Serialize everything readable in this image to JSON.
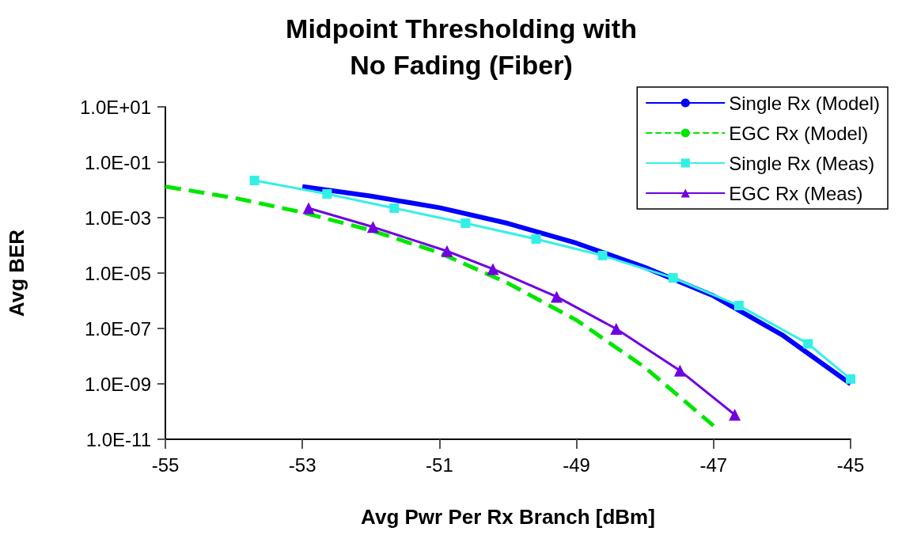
{
  "chart_data": {
    "type": "line",
    "title": "Midpoint Thresholding with\nNo Fading (Fiber)",
    "xlabel": "Avg Pwr Per Rx Branch [dBm]",
    "ylabel": "Avg BER",
    "log": "y",
    "xlim": [
      -55,
      -45
    ],
    "xticks": [
      -55,
      -53,
      -51,
      -49,
      -47,
      -45
    ],
    "ylim": [
      1e-11,
      10
    ],
    "yticks": [
      {
        "value": 10,
        "label": "1.0E+01"
      },
      {
        "value": 0.1,
        "label": "1.0E-01"
      },
      {
        "value": 0.001,
        "label": "1.0E-03"
      },
      {
        "value": 1e-05,
        "label": "1.0E-05"
      },
      {
        "value": 1e-07,
        "label": "1.0E-07"
      },
      {
        "value": 1e-09,
        "label": "1.0E-09"
      },
      {
        "value": 1e-11,
        "label": "1.0E-11"
      }
    ],
    "grid": false,
    "legend": "top right",
    "series": [
      {
        "name": "Single Rx (Model)",
        "color": "#0000ff",
        "marker": "none",
        "line_style": "solid",
        "x": [
          -53,
          -52,
          -51,
          -50,
          -49,
          -48,
          -47,
          -46,
          -45
        ],
        "values": [
          0.0133,
          0.006,
          0.0023,
          0.00062,
          0.00012,
          1.6e-05,
          1.5e-06,
          5.9e-08,
          1e-09
        ]
      },
      {
        "name": "EGC Rx (Model)",
        "color": "#00e600",
        "marker": "none",
        "line_style": "dashed",
        "x": [
          -55,
          -54,
          -53,
          -52,
          -51,
          -50,
          -49,
          -48,
          -47
        ],
        "values": [
          0.0133,
          0.0052,
          0.00155,
          0.00035,
          5.4e-05,
          4.3e-06,
          2e-07,
          3.9e-09,
          3.1e-11
        ]
      },
      {
        "name": "Single Rx (Meas)",
        "color": "#33f0e6",
        "marker": "square",
        "line_style": "solid",
        "x": [
          -53.7,
          -52.64,
          -51.66,
          -50.62,
          -49.59,
          -48.62,
          -47.59,
          -46.63,
          -45.62,
          -45
        ],
        "values": [
          0.022,
          0.0072,
          0.0022,
          0.00063,
          0.00017,
          4.3e-05,
          6.7e-06,
          6.7e-07,
          2.8e-08,
          1.5e-09
        ]
      },
      {
        "name": "EGC Rx (Meas)",
        "color": "#7000e0",
        "marker": "triangle",
        "line_style": "solid",
        "x": [
          -52.91,
          -51.97,
          -50.89,
          -50.22,
          -49.29,
          -48.42,
          -47.49,
          -46.69
        ],
        "values": [
          0.0022,
          0.00046,
          6.2e-05,
          1.4e-05,
          1.4e-06,
          9.7e-08,
          3e-09,
          7.7e-11
        ]
      }
    ]
  }
}
